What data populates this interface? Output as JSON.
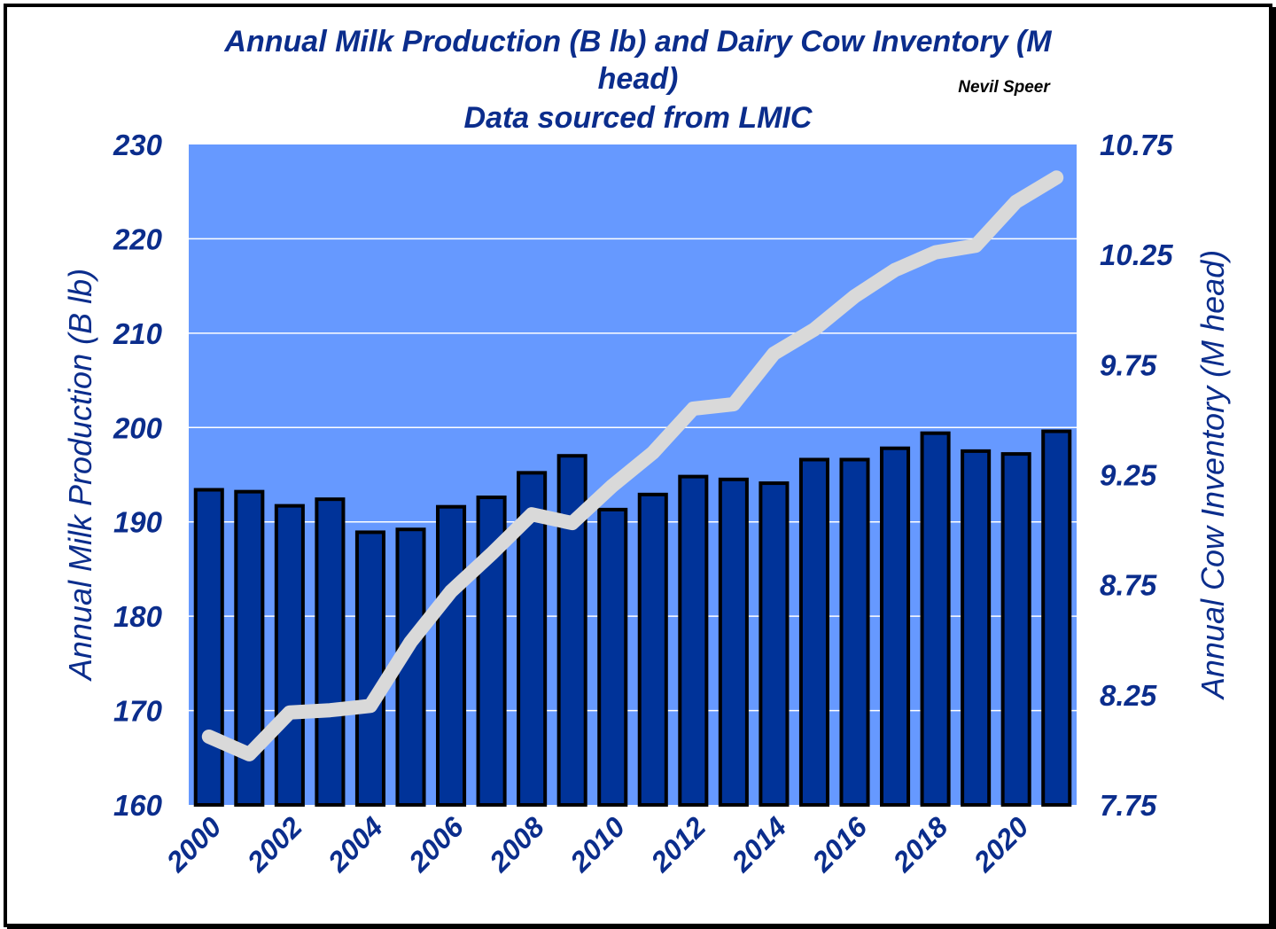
{
  "chart_data": {
    "type": "bar",
    "title_lines": [
      "Annual Milk Production (B lb) and Dairy Cow Inventory (M",
      "head)",
      "Data sourced from LMIC"
    ],
    "author": "Nevil Speer",
    "categories": [
      "2000",
      "2001",
      "2002",
      "2003",
      "2004",
      "2005",
      "2006",
      "2007",
      "2008",
      "2009",
      "2010",
      "2011",
      "2012",
      "2013",
      "2014",
      "2015",
      "2016",
      "2017",
      "2018",
      "2019",
      "2020",
      "2021"
    ],
    "x_tick_labels": [
      "2000",
      "2002",
      "2004",
      "2006",
      "2008",
      "2010",
      "2012",
      "2014",
      "2016",
      "2018",
      "2020"
    ],
    "series": [
      {
        "name": "Annual Milk Production (B lb)",
        "type": "bar",
        "axis": "left",
        "values": [
          193.4,
          193.2,
          191.7,
          192.4,
          188.9,
          189.2,
          191.6,
          192.6,
          195.2,
          197.0,
          191.3,
          192.9,
          194.8,
          194.5,
          194.1,
          196.6,
          196.6,
          197.8,
          199.4,
          197.5,
          197.2,
          199.6
        ]
      },
      {
        "name": "Annual Cow Inventory (M head)",
        "type": "line",
        "axis": "right",
        "values": [
          8.06,
          7.98,
          8.17,
          8.18,
          8.2,
          8.49,
          8.72,
          8.89,
          9.07,
          9.03,
          9.2,
          9.35,
          9.55,
          9.57,
          9.8,
          9.91,
          10.06,
          10.18,
          10.26,
          10.29,
          10.49,
          10.6
        ]
      }
    ],
    "ylabel_left": "Annual Milk Production (B lb)",
    "ylabel_right": "Annual Cow Inventory (M head)",
    "ylim_left": [
      160,
      230
    ],
    "yticks_left": [
      "160",
      "170",
      "180",
      "190",
      "200",
      "210",
      "220",
      "230"
    ],
    "ylim_right": [
      7.75,
      10.75
    ],
    "yticks_right": [
      "7.75",
      "8.25",
      "8.75",
      "9.25",
      "9.75",
      "10.25",
      "10.75"
    ],
    "grid": "horizontal",
    "legend": "none",
    "colors": {
      "plot_background": "#6699ff",
      "bar_fill": "#003399",
      "bar_outline": "#000000",
      "line": "#d9d9d9",
      "gridline": "#ffffff",
      "text": "#0b2d8c"
    }
  }
}
